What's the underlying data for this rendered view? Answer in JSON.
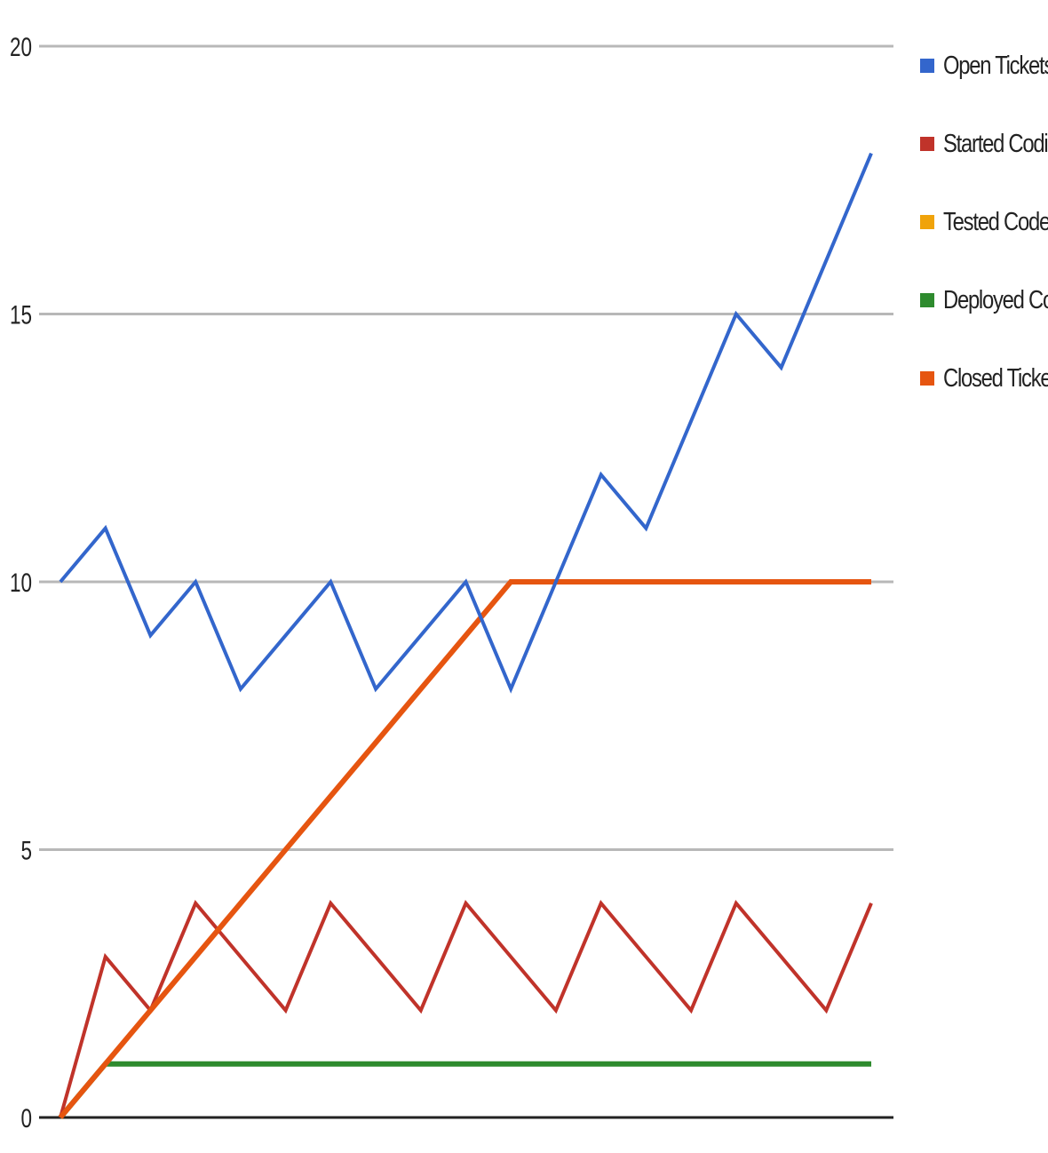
{
  "chart_data": {
    "type": "line",
    "x": [
      0,
      1,
      2,
      3,
      4,
      5,
      6,
      7,
      8,
      9,
      10,
      11,
      12,
      13,
      14,
      15,
      16,
      17,
      18
    ],
    "ylim": [
      0,
      20
    ],
    "yticks": [
      "0",
      "5",
      "10",
      "15",
      "20"
    ],
    "grid": true,
    "legend_position": "right",
    "series": [
      {
        "name": "Open Tickets",
        "color": "#3366cc",
        "values": [
          10,
          11,
          9,
          10,
          8,
          9,
          10,
          8,
          9,
          10,
          8,
          10,
          12,
          11,
          13,
          15,
          14,
          16,
          18
        ]
      },
      {
        "name": "Started Coding",
        "color": "#c0332a",
        "values": [
          0,
          3,
          2,
          4,
          3,
          2,
          4,
          3,
          2,
          4,
          3,
          2,
          4,
          3,
          2,
          4,
          3,
          2,
          4
        ]
      },
      {
        "name": "Tested Code",
        "color": "#f0a30a",
        "values": [
          0,
          1,
          1,
          1,
          1,
          1,
          1,
          1,
          1,
          1,
          1,
          1,
          1,
          1,
          1,
          1,
          1,
          1,
          1
        ]
      },
      {
        "name": "Deployed Code",
        "color": "#2e8b2e",
        "values": [
          0,
          1,
          1,
          1,
          1,
          1,
          1,
          1,
          1,
          1,
          1,
          1,
          1,
          1,
          1,
          1,
          1,
          1,
          1
        ]
      },
      {
        "name": "Closed Tickets",
        "color": "#e65510",
        "values": [
          0,
          1,
          2,
          3,
          4,
          5,
          6,
          7,
          8,
          9,
          10,
          10,
          10,
          10,
          10,
          10,
          10,
          10,
          10
        ]
      }
    ]
  }
}
